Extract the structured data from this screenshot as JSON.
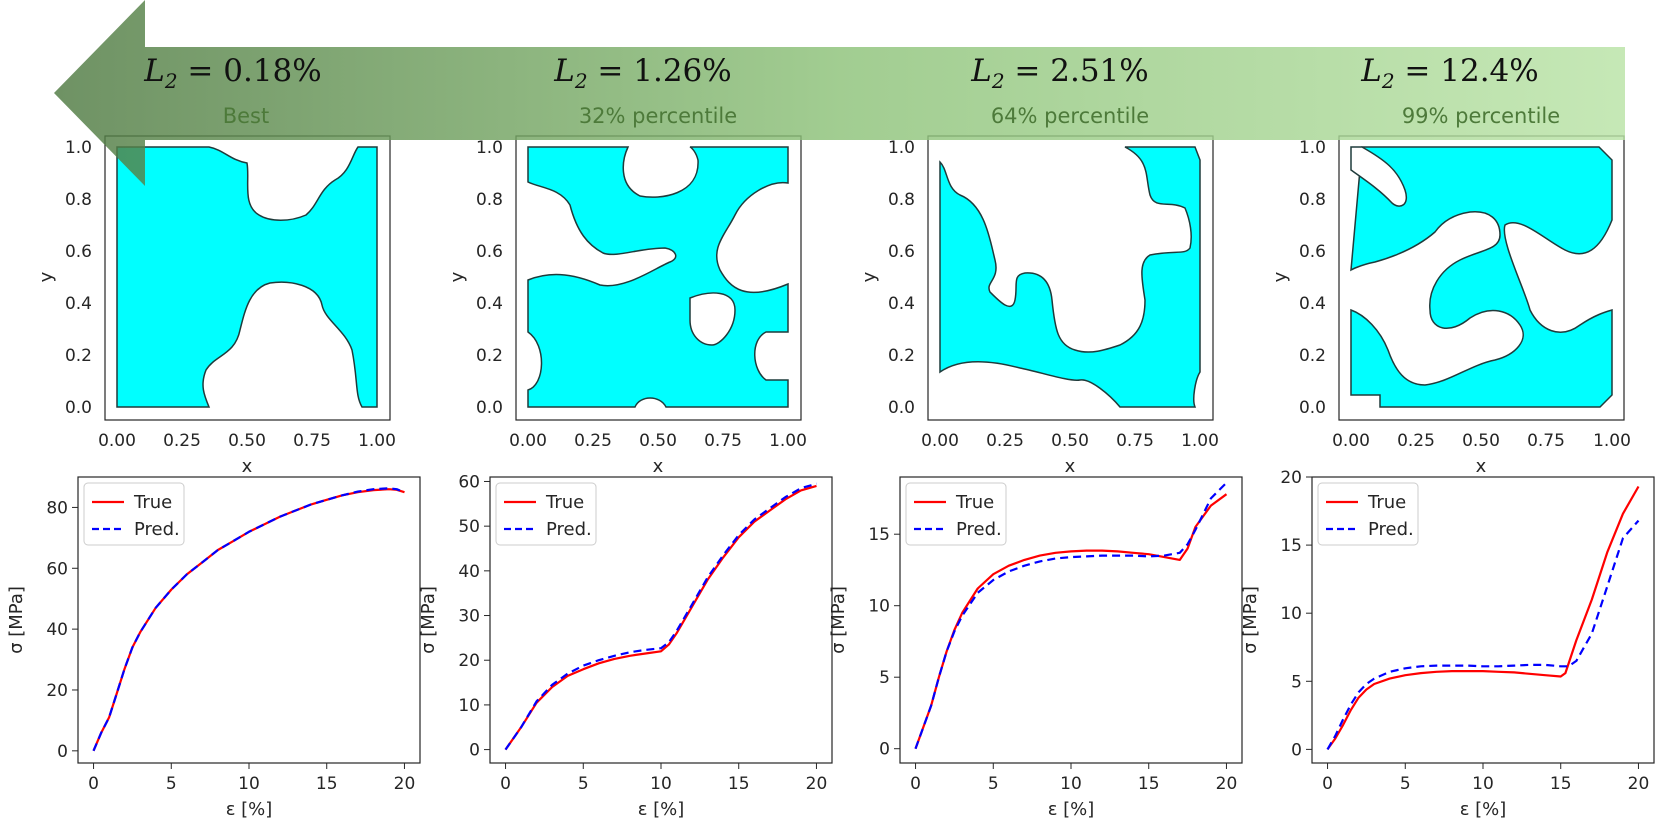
{
  "figure": {
    "ranking_arrow": {
      "direction": "left",
      "color_dark": "#4f7a42",
      "color_light": "#b9e3a6"
    },
    "columns": [
      {
        "l2_symbol": "L",
        "l2_subscript": "2",
        "l2_value": " = 0.18%",
        "label": "Best"
      },
      {
        "l2_symbol": "L",
        "l2_subscript": "2",
        "l2_value": " = 1.26%",
        "label": "32% percentile"
      },
      {
        "l2_symbol": "L",
        "l2_subscript": "2",
        "l2_value": " = 2.51%",
        "label": "64% percentile"
      },
      {
        "l2_symbol": "L",
        "l2_subscript": "2",
        "l2_value": " = 12.4%",
        "label": "99% percentile"
      }
    ],
    "geometry_panels": {
      "xlabel": "x",
      "ylabel": "y",
      "xticks": [
        "0.00",
        "0.25",
        "0.50",
        "0.75",
        "1.00"
      ],
      "yticks": [
        "0.0",
        "0.2",
        "0.4",
        "0.6",
        "0.8",
        "1.0"
      ],
      "fill_color": "#00ffff",
      "edge_color": "#1f3b3b"
    }
  },
  "chart_data": [
    {
      "type": "line",
      "title": "",
      "xlabel": "ε [%]",
      "ylabel": "σ [MPa]",
      "xlim": [
        -1,
        21
      ],
      "ylim": [
        -4,
        90
      ],
      "xticks": [
        0,
        5,
        10,
        15,
        20
      ],
      "yticks": [
        0,
        20,
        40,
        60,
        80
      ],
      "legend": "top-left",
      "series": [
        {
          "name": "True",
          "color": "#ff0000",
          "dash": "solid",
          "x": [
            0,
            0.5,
            1,
            1.5,
            2,
            2.5,
            3,
            4,
            5,
            6,
            7,
            8,
            9,
            10,
            11,
            12,
            13,
            14,
            15,
            16,
            17,
            18,
            19,
            19.5,
            20
          ],
          "y": [
            0,
            6,
            11,
            19,
            27,
            34,
            39,
            47,
            53,
            58,
            62,
            66,
            69,
            72,
            74.5,
            77,
            79,
            81,
            82.5,
            84,
            85,
            85.7,
            86,
            85.8,
            85
          ]
        },
        {
          "name": "Pred.",
          "color": "#0000ff",
          "dash": "dashed",
          "x": [
            0,
            0.5,
            1,
            1.5,
            2,
            2.5,
            3,
            4,
            5,
            6,
            7,
            8,
            9,
            10,
            11,
            12,
            13,
            14,
            15,
            16,
            17,
            18,
            19,
            19.5,
            20
          ],
          "y": [
            0,
            6,
            11,
            19,
            27,
            34,
            39,
            47,
            53,
            58,
            62,
            66,
            69,
            72,
            74.5,
            77,
            79,
            81,
            82.5,
            84,
            85.2,
            86,
            86.3,
            86,
            85
          ]
        }
      ]
    },
    {
      "type": "line",
      "title": "",
      "xlabel": "ε [%]",
      "ylabel": "σ [MPa]",
      "xlim": [
        -1,
        21
      ],
      "ylim": [
        -3,
        61
      ],
      "xticks": [
        0,
        5,
        10,
        15,
        20
      ],
      "yticks": [
        0,
        10,
        20,
        30,
        40,
        50,
        60
      ],
      "legend": "top-left",
      "series": [
        {
          "name": "True",
          "color": "#ff0000",
          "dash": "solid",
          "x": [
            0,
            1,
            2,
            3,
            4,
            5,
            6,
            7,
            8,
            9,
            10,
            10.5,
            11,
            12,
            13,
            14,
            15,
            16,
            17,
            18,
            19,
            20
          ],
          "y": [
            0,
            5,
            10.5,
            14,
            16.5,
            18,
            19.3,
            20.3,
            21,
            21.5,
            22,
            23.5,
            26,
            32,
            38,
            43,
            47.5,
            51,
            53.5,
            56,
            58,
            59
          ]
        },
        {
          "name": "Pred.",
          "color": "#0000ff",
          "dash": "dashed",
          "x": [
            0,
            1,
            2,
            3,
            4,
            5,
            6,
            7,
            8,
            9,
            10,
            10.5,
            11,
            12,
            13,
            14,
            15,
            16,
            17,
            18,
            19,
            20
          ],
          "y": [
            0,
            5,
            10.8,
            14.5,
            17,
            18.8,
            20,
            21,
            21.8,
            22.3,
            22.7,
            24,
            26.5,
            32.5,
            38.5,
            43.5,
            48,
            51.5,
            54,
            56.5,
            58.5,
            59.5
          ]
        }
      ]
    },
    {
      "type": "line",
      "title": "",
      "xlabel": "ε [%]",
      "ylabel": "σ [MPa]",
      "xlim": [
        -1,
        21
      ],
      "ylim": [
        -1,
        19
      ],
      "xticks": [
        0,
        5,
        10,
        15,
        20
      ],
      "yticks": [
        0,
        5,
        10,
        15
      ],
      "legend": "top-left",
      "series": [
        {
          "name": "True",
          "color": "#ff0000",
          "dash": "solid",
          "x": [
            0,
            0.5,
            1,
            1.5,
            2,
            2.5,
            3,
            4,
            5,
            6,
            7,
            8,
            9,
            10,
            11,
            12,
            13,
            14,
            15,
            16,
            17,
            17.5,
            18,
            19,
            20
          ],
          "y": [
            0,
            1.5,
            3,
            5,
            6.8,
            8.3,
            9.5,
            11.2,
            12.2,
            12.8,
            13.2,
            13.5,
            13.7,
            13.8,
            13.85,
            13.85,
            13.8,
            13.7,
            13.6,
            13.4,
            13.2,
            14,
            15.5,
            17,
            17.8
          ]
        },
        {
          "name": "Pred.",
          "color": "#0000ff",
          "dash": "dashed",
          "x": [
            0,
            0.5,
            1,
            1.5,
            2,
            2.5,
            3,
            4,
            5,
            6,
            7,
            8,
            9,
            10,
            11,
            12,
            13,
            14,
            15,
            16,
            17,
            17.5,
            18,
            19,
            20
          ],
          "y": [
            0,
            1.5,
            3,
            5,
            6.8,
            8.2,
            9.3,
            10.9,
            11.8,
            12.4,
            12.8,
            13.1,
            13.3,
            13.4,
            13.45,
            13.5,
            13.5,
            13.5,
            13.45,
            13.5,
            13.7,
            14.3,
            15.3,
            17.5,
            18.6
          ]
        }
      ]
    },
    {
      "type": "line",
      "title": "",
      "xlabel": "ε [%]",
      "ylabel": "σ [MPa]",
      "xlim": [
        -1,
        21
      ],
      "ylim": [
        -1,
        20
      ],
      "xticks": [
        0,
        5,
        10,
        15,
        20
      ],
      "yticks": [
        0,
        5,
        10,
        15,
        20
      ],
      "legend": "top-left",
      "series": [
        {
          "name": "True",
          "color": "#ff0000",
          "dash": "solid",
          "x": [
            0,
            0.5,
            1,
            1.5,
            2,
            2.5,
            3,
            4,
            5,
            6,
            7,
            8,
            9,
            10,
            11,
            12,
            13,
            14,
            15,
            15.3,
            16,
            17,
            18,
            19,
            20
          ],
          "y": [
            0,
            0.8,
            1.8,
            2.9,
            3.8,
            4.4,
            4.8,
            5.2,
            5.45,
            5.6,
            5.7,
            5.75,
            5.75,
            5.75,
            5.7,
            5.65,
            5.55,
            5.45,
            5.35,
            5.6,
            8,
            11,
            14.5,
            17.3,
            19.3
          ]
        },
        {
          "name": "Pred.",
          "color": "#0000ff",
          "dash": "dashed",
          "x": [
            0,
            0.5,
            1,
            1.5,
            2,
            2.5,
            3,
            4,
            5,
            6,
            7,
            8,
            9,
            10,
            11,
            12,
            13,
            14,
            15,
            15.5,
            16,
            17,
            18,
            19,
            20
          ],
          "y": [
            0,
            1,
            2.2,
            3.3,
            4.2,
            4.8,
            5.2,
            5.7,
            5.95,
            6.1,
            6.15,
            6.15,
            6.15,
            6.1,
            6.1,
            6.15,
            6.2,
            6.2,
            6.1,
            6.1,
            6.5,
            8.5,
            12,
            15.5,
            16.8
          ]
        }
      ]
    }
  ]
}
